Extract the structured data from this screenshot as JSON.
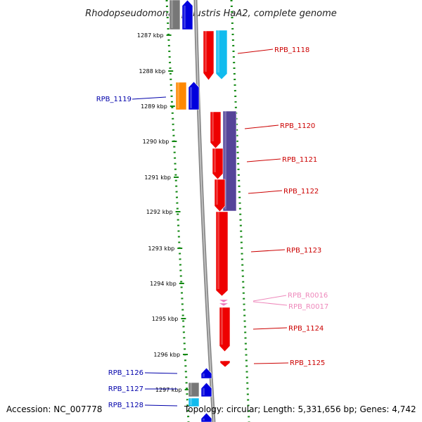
{
  "title": "Rhodopseudomonas palustris HaA2, complete genome",
  "footer": {
    "accession": "Accession: NC_007778",
    "summary": "Topology: circular; Length: 5,331,656 bp; Genes: 4,742"
  },
  "ticks": [
    "1287 kbp",
    "1288 kbp",
    "1289 kbp",
    "1290 kbp",
    "1291 kbp",
    "1292 kbp",
    "1293 kbp",
    "1294 kbp",
    "1295 kbp",
    "1296 kbp",
    "1297 kbp"
  ],
  "colors": {
    "backbone": "#888888",
    "guide_dots": "#118811",
    "red_label": "#cc0000",
    "blue_label": "#0000aa",
    "pink_label": "#ee88bb",
    "red_gene": "#ee0000",
    "blue_gene": "#0000dd",
    "cyan_gene": "#11bbee",
    "purple_gene": "#554499",
    "orange_gene": "#ff8800",
    "gray_gene": "#777777",
    "pink_gene": "#ee77bb"
  },
  "labels": [
    {
      "text": "RPB_1118",
      "color": "red"
    },
    {
      "text": "RPB_1119",
      "color": "blue"
    },
    {
      "text": "RPB_1120",
      "color": "red"
    },
    {
      "text": "RPB_1121",
      "color": "red"
    },
    {
      "text": "RPB_1122",
      "color": "red"
    },
    {
      "text": "RPB_1123",
      "color": "red"
    },
    {
      "text": "RPB_R0016",
      "color": "pink"
    },
    {
      "text": "RPB_R0017",
      "color": "pink"
    },
    {
      "text": "RPB_1124",
      "color": "red"
    },
    {
      "text": "RPB_1125",
      "color": "red"
    },
    {
      "text": "RPB_1126",
      "color": "blue"
    },
    {
      "text": "RPB_1127",
      "color": "blue"
    },
    {
      "text": "RPB_1128",
      "color": "blue"
    }
  ],
  "genes": [
    {
      "color": "gray",
      "strand": "left"
    },
    {
      "color": "blue",
      "strand": "left"
    },
    {
      "color": "red",
      "strand": "right"
    },
    {
      "color": "cyan",
      "strand": "right"
    },
    {
      "color": "orange",
      "strand": "left"
    },
    {
      "color": "blue",
      "strand": "left"
    },
    {
      "color": "red",
      "strand": "right"
    },
    {
      "color": "purple",
      "strand": "right"
    },
    {
      "color": "red",
      "strand": "right"
    },
    {
      "color": "red",
      "strand": "right"
    },
    {
      "color": "red",
      "strand": "right"
    },
    {
      "color": "pink",
      "strand": "right"
    },
    {
      "color": "pink",
      "strand": "right"
    },
    {
      "color": "red",
      "strand": "right"
    },
    {
      "color": "red",
      "strand": "right"
    },
    {
      "color": "blue",
      "strand": "left"
    },
    {
      "color": "gray",
      "strand": "left"
    },
    {
      "color": "blue",
      "strand": "left"
    },
    {
      "color": "cyan",
      "strand": "left"
    },
    {
      "color": "blue",
      "strand": "left"
    }
  ]
}
